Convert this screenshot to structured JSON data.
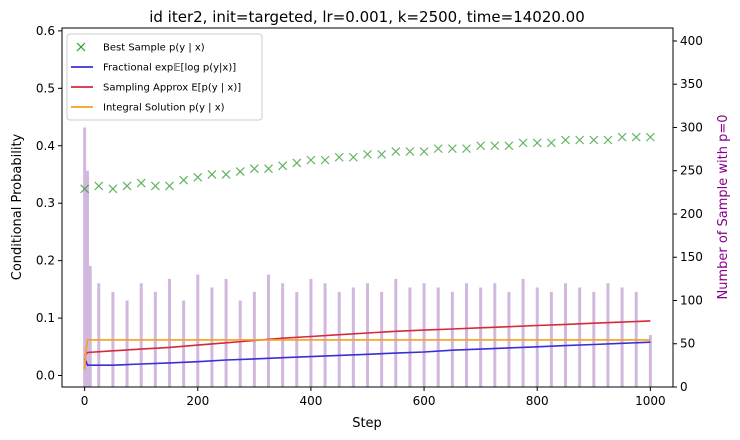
{
  "chart_data": {
    "type": "line",
    "title": "id iter2, init=targeted, lr=0.001, k=2500, time=14020.00",
    "xlabel": "Step",
    "ylabel": "Conditional Probability",
    "y2label": "Number of Sample with p=0",
    "xlim": [
      -40,
      1040
    ],
    "ylim": [
      -0.02,
      0.605
    ],
    "y2lim": [
      0,
      415
    ],
    "xticks": [
      "0",
      "200",
      "400",
      "600",
      "800",
      "1000"
    ],
    "yticks": [
      "0.0",
      "0.1",
      "0.2",
      "0.3",
      "0.4",
      "0.5",
      "0.6"
    ],
    "y2ticks": [
      "0",
      "50",
      "100",
      "150",
      "200",
      "250",
      "300",
      "350",
      "400"
    ],
    "legend_position": "top-left",
    "grid": false,
    "colors": {
      "best_sample": "#2a9a2a",
      "fractional": "#3a2fd6",
      "sampling": "#d62a3a",
      "integral": "#f5a020",
      "bars": "#c7a6d6",
      "y2label": "#8a008a"
    },
    "series": [
      {
        "name": "Best Sample p(y | x)",
        "kind": "scatter",
        "x": [
          0,
          25,
          50,
          75,
          100,
          125,
          150,
          175,
          200,
          225,
          250,
          275,
          300,
          325,
          350,
          375,
          400,
          425,
          450,
          475,
          500,
          525,
          550,
          575,
          600,
          625,
          650,
          675,
          700,
          725,
          750,
          775,
          800,
          825,
          850,
          875,
          900,
          925,
          950,
          975,
          1000
        ],
        "values": [
          0.325,
          0.33,
          0.325,
          0.33,
          0.335,
          0.33,
          0.33,
          0.34,
          0.345,
          0.35,
          0.35,
          0.355,
          0.36,
          0.36,
          0.365,
          0.37,
          0.375,
          0.375,
          0.38,
          0.38,
          0.385,
          0.385,
          0.39,
          0.39,
          0.39,
          0.395,
          0.395,
          0.395,
          0.4,
          0.4,
          0.4,
          0.405,
          0.405,
          0.405,
          0.41,
          0.41,
          0.41,
          0.41,
          0.415,
          0.415,
          0.415
        ]
      },
      {
        "name": "Fractional exp𝔼[log p(y|x)]",
        "kind": "line",
        "x": [
          0,
          5,
          50,
          100,
          150,
          200,
          250,
          300,
          350,
          400,
          450,
          500,
          550,
          600,
          650,
          700,
          750,
          800,
          850,
          900,
          950,
          1000
        ],
        "values": [
          0.03,
          0.018,
          0.018,
          0.02,
          0.022,
          0.024,
          0.027,
          0.029,
          0.031,
          0.033,
          0.035,
          0.037,
          0.039,
          0.041,
          0.044,
          0.046,
          0.048,
          0.05,
          0.052,
          0.054,
          0.056,
          0.058
        ]
      },
      {
        "name": "Sampling Approx E[p(y | x)]",
        "kind": "line",
        "x": [
          0,
          5,
          50,
          100,
          150,
          200,
          250,
          300,
          350,
          400,
          450,
          500,
          550,
          600,
          650,
          700,
          750,
          800,
          850,
          900,
          950,
          1000
        ],
        "values": [
          0.035,
          0.04,
          0.043,
          0.046,
          0.049,
          0.053,
          0.057,
          0.061,
          0.065,
          0.068,
          0.071,
          0.074,
          0.077,
          0.079,
          0.081,
          0.083,
          0.085,
          0.087,
          0.089,
          0.091,
          0.093,
          0.095
        ]
      },
      {
        "name": "Integral Solution p(y | x)",
        "kind": "line",
        "x": [
          0,
          2,
          5,
          50,
          100,
          200,
          300,
          400,
          500,
          600,
          700,
          800,
          900,
          1000
        ],
        "values": [
          0.01,
          0.04,
          0.062,
          0.062,
          0.062,
          0.062,
          0.062,
          0.062,
          0.062,
          0.062,
          0.062,
          0.062,
          0.062,
          0.062
        ]
      },
      {
        "name": "",
        "kind": "bar",
        "axis": "y2",
        "x": [
          0,
          5,
          10,
          25,
          50,
          75,
          100,
          125,
          150,
          175,
          200,
          225,
          250,
          275,
          300,
          325,
          350,
          375,
          400,
          425,
          450,
          475,
          500,
          525,
          550,
          575,
          600,
          625,
          650,
          675,
          700,
          725,
          750,
          775,
          800,
          825,
          850,
          875,
          900,
          925,
          950,
          975,
          1000
        ],
        "values": [
          300,
          250,
          140,
          120,
          110,
          100,
          120,
          110,
          125,
          100,
          130,
          115,
          125,
          100,
          110,
          130,
          120,
          110,
          125,
          120,
          110,
          115,
          120,
          110,
          125,
          115,
          120,
          115,
          110,
          120,
          115,
          120,
          110,
          125,
          115,
          110,
          120,
          115,
          110,
          120,
          115,
          110,
          60
        ]
      }
    ]
  }
}
